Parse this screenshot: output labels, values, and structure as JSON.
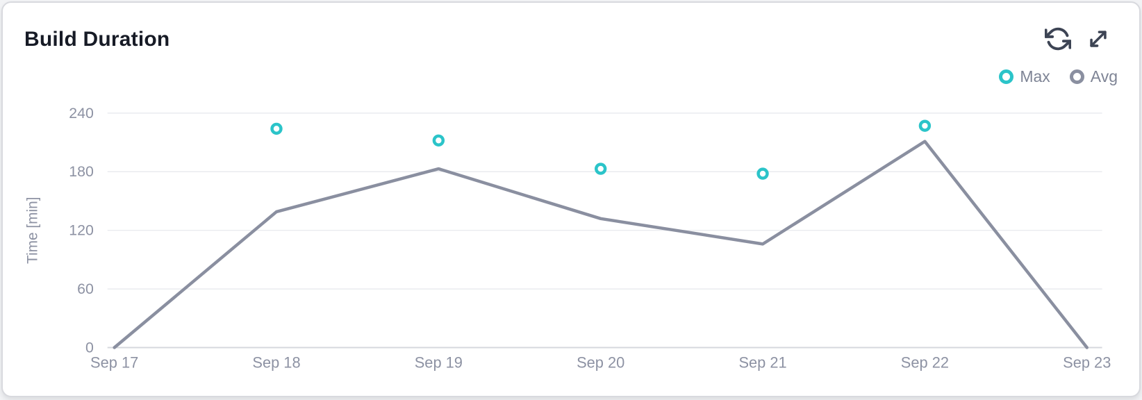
{
  "card": {
    "title": "Build Duration"
  },
  "actions": {
    "refresh_label": "refresh",
    "expand_label": "expand"
  },
  "legend": [
    {
      "label": "Max",
      "color": "#2bc4c9"
    },
    {
      "label": "Avg",
      "color": "#8a8fa0"
    }
  ],
  "colors": {
    "accent_teal": "#2bc4c9",
    "line_gray": "#8a8fa0",
    "gridline": "#eaebef",
    "zero_line": "#d6d8dd",
    "axis_text": "#8d92a3",
    "icon": "#3d4454",
    "title_text": "#171b26"
  },
  "chart_data": {
    "type": "line",
    "title": "Build Duration",
    "xlabel": "",
    "ylabel": "Time [min]",
    "categories": [
      "Sep 17",
      "Sep 18",
      "Sep 19",
      "Sep 20",
      "Sep 21",
      "Sep 22",
      "Sep 23"
    ],
    "series": [
      {
        "name": "Max",
        "type": "scatter",
        "color": "#2bc4c9",
        "values": [
          null,
          224,
          212,
          183,
          178,
          227,
          null
        ]
      },
      {
        "name": "Avg",
        "type": "line",
        "color": "#8a8fa0",
        "values": [
          0,
          139,
          183,
          132,
          106,
          211,
          0
        ]
      }
    ],
    "ylim": [
      0,
      240
    ],
    "yticks": [
      0,
      60,
      120,
      180,
      240
    ],
    "grid": true,
    "legend_position": "top-right"
  }
}
